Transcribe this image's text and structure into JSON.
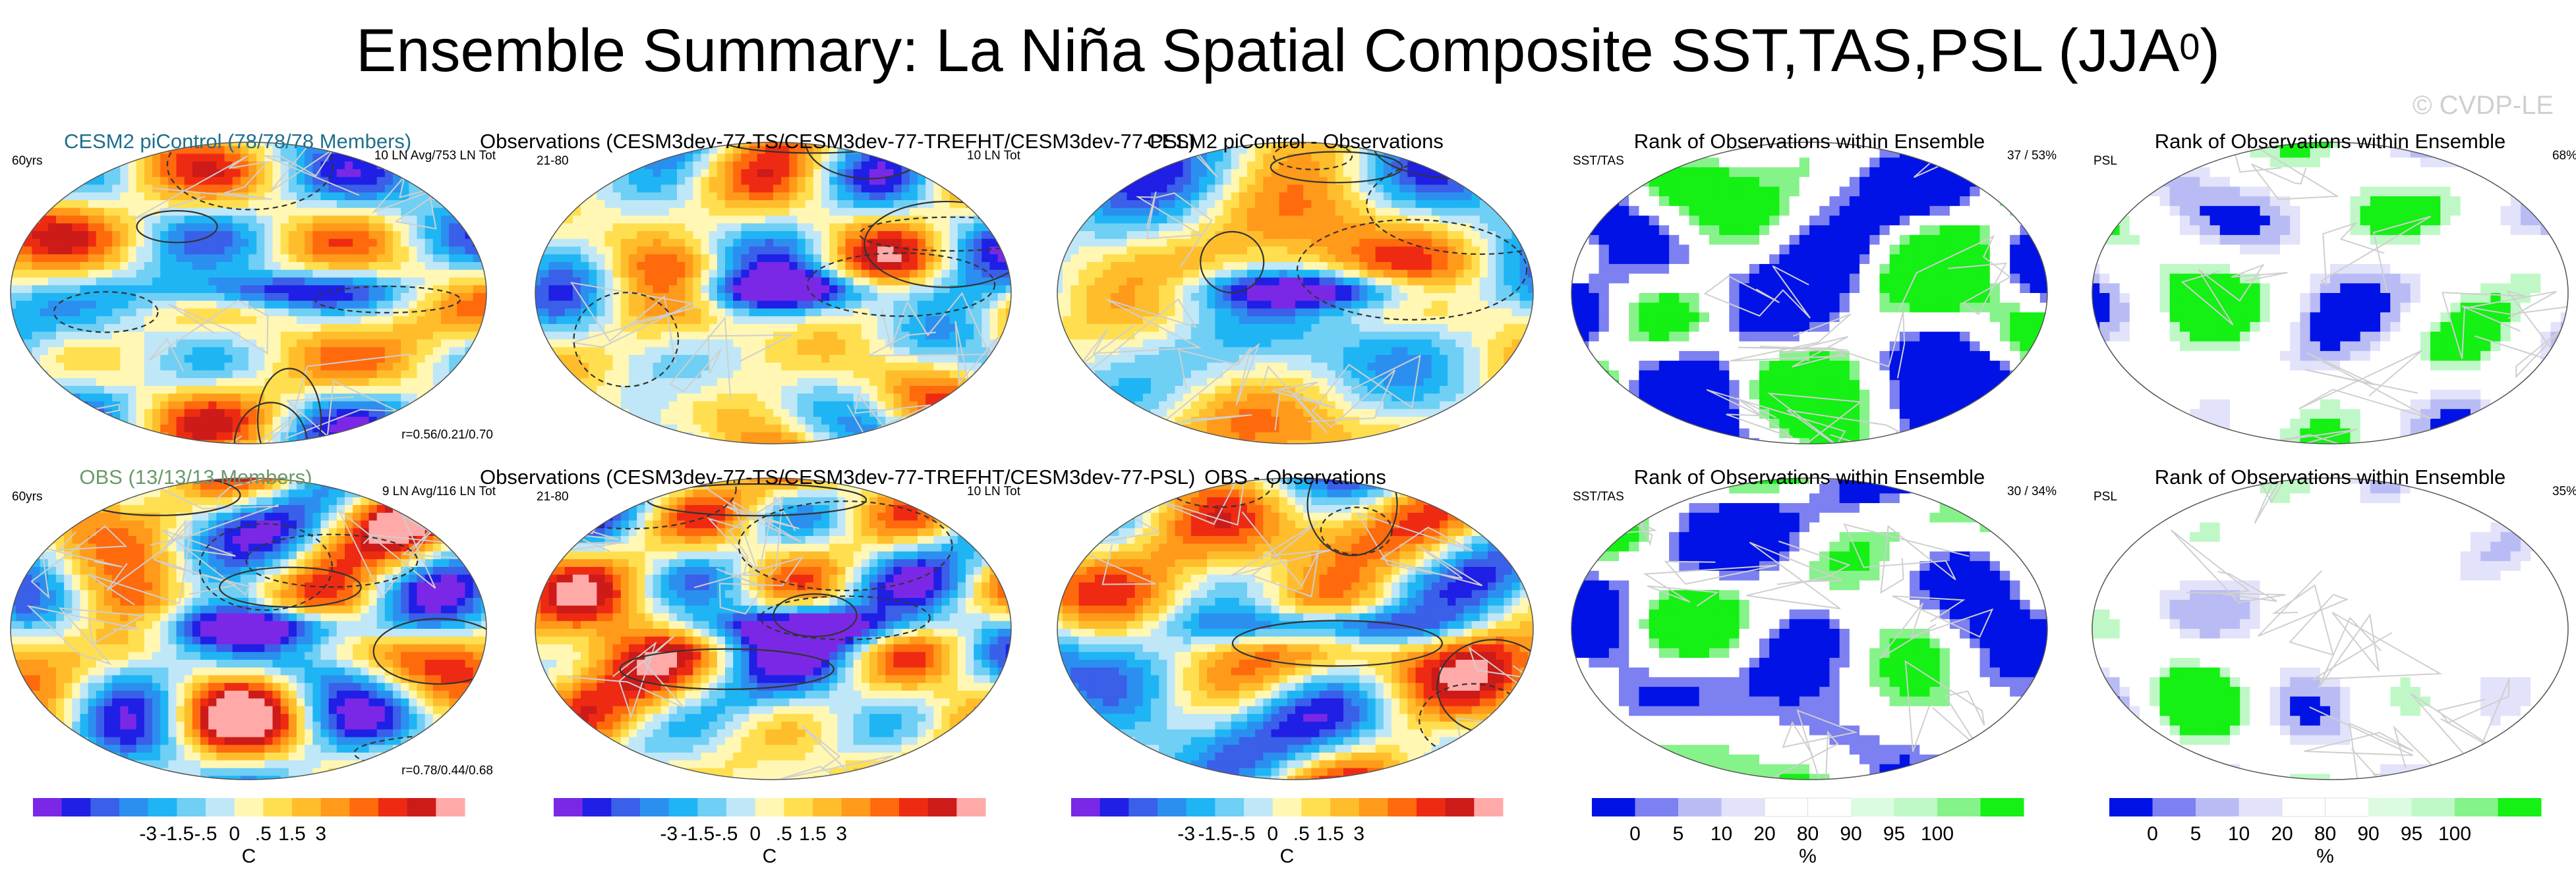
{
  "title": "Ensemble Summary: La Niña Spatial Composite SST,TAS,PSL (JJA",
  "title_superscript": "0",
  "title_close": ")",
  "watermark": "© CVDP-LE",
  "colors": {
    "diverging": [
      "#7a28e6",
      "#1f1fe6",
      "#3a5fe8",
      "#2b8ff0",
      "#1fb5f5",
      "#6fcff5",
      "#bfe7f8",
      "#fff7b3",
      "#ffdf4f",
      "#ffbd2c",
      "#ff9a1a",
      "#ff6a0d",
      "#ee2b12",
      "#cc1b19",
      "#ffaaa8"
    ],
    "rank": [
      "#0012e6",
      "#7c80f0",
      "#b9bcf4",
      "#e2e2fa",
      "#ffffff",
      "#ffffff",
      "#dcfbe0",
      "#bff8c6",
      "#86f28a",
      "#15f015"
    ],
    "land_line": "#cfcfcf",
    "contour": "#333333"
  },
  "chart_data": [
    {
      "id": "r1c1",
      "type": "heatmap",
      "title": "CESM2 piControl (78/78/78 Members)",
      "title_color": "#1f6f8b",
      "left_label": "60yrs",
      "right_label": "10 LN Avg/753 LN Tot",
      "bottom_label": "r=0.56/0.21/0.70",
      "units": "C"
    },
    {
      "id": "r1c2",
      "type": "heatmap",
      "title": "Observations (CESM3dev-77-TS/CESM3dev-77-TREFHT/CESM3dev-77-PSL)",
      "title_color": "#000000",
      "left_label": "21-80",
      "right_label": "10 LN Tot",
      "units": "C"
    },
    {
      "id": "r1c3",
      "type": "heatmap",
      "title": "CESM2 piControl - Observations",
      "title_color": "#000000",
      "units": "C"
    },
    {
      "id": "r1c4",
      "type": "heatmap",
      "title": "Rank of Observations within Ensemble",
      "title_color": "#000000",
      "left_label": "SST/TAS",
      "right_label": "37 /  53%",
      "units": "%"
    },
    {
      "id": "r1c5",
      "type": "heatmap",
      "title": "Rank of Observations within Ensemble",
      "title_color": "#000000",
      "left_label": "PSL",
      "right_label": "68%",
      "units": "%"
    },
    {
      "id": "r2c1",
      "type": "heatmap",
      "title": "OBS (13/13/13 Members)",
      "title_color": "#6a9a6a",
      "left_label": "60yrs",
      "right_label": "9 LN Avg/116 LN Tot",
      "bottom_label": "r=0.78/0.44/0.68",
      "units": "C"
    },
    {
      "id": "r2c2",
      "type": "heatmap",
      "title": "Observations (CESM3dev-77-TS/CESM3dev-77-TREFHT/CESM3dev-77-PSL)",
      "title_color": "#000000",
      "left_label": "21-80",
      "right_label": "10 LN Tot",
      "units": "C"
    },
    {
      "id": "r2c3",
      "type": "heatmap",
      "title": "OBS - Observations",
      "title_color": "#000000",
      "units": "C"
    },
    {
      "id": "r2c4",
      "type": "heatmap",
      "title": "Rank of Observations within Ensemble",
      "title_color": "#000000",
      "left_label": "SST/TAS",
      "right_label": "30 /  34%",
      "units": "%"
    },
    {
      "id": "r2c5",
      "type": "heatmap",
      "title": "Rank of Observations within Ensemble",
      "title_color": "#000000",
      "left_label": "PSL",
      "right_label": "35%",
      "units": "%"
    }
  ],
  "colorbars": {
    "temperature": {
      "ticks": [
        "-3",
        "-1.5",
        "-.5",
        "0",
        ".5",
        "1.5",
        "3"
      ],
      "label": "C"
    },
    "rank": {
      "ticks": [
        "0",
        "5",
        "10",
        "20",
        "80",
        "90",
        "95",
        "100"
      ],
      "label": "%"
    }
  }
}
